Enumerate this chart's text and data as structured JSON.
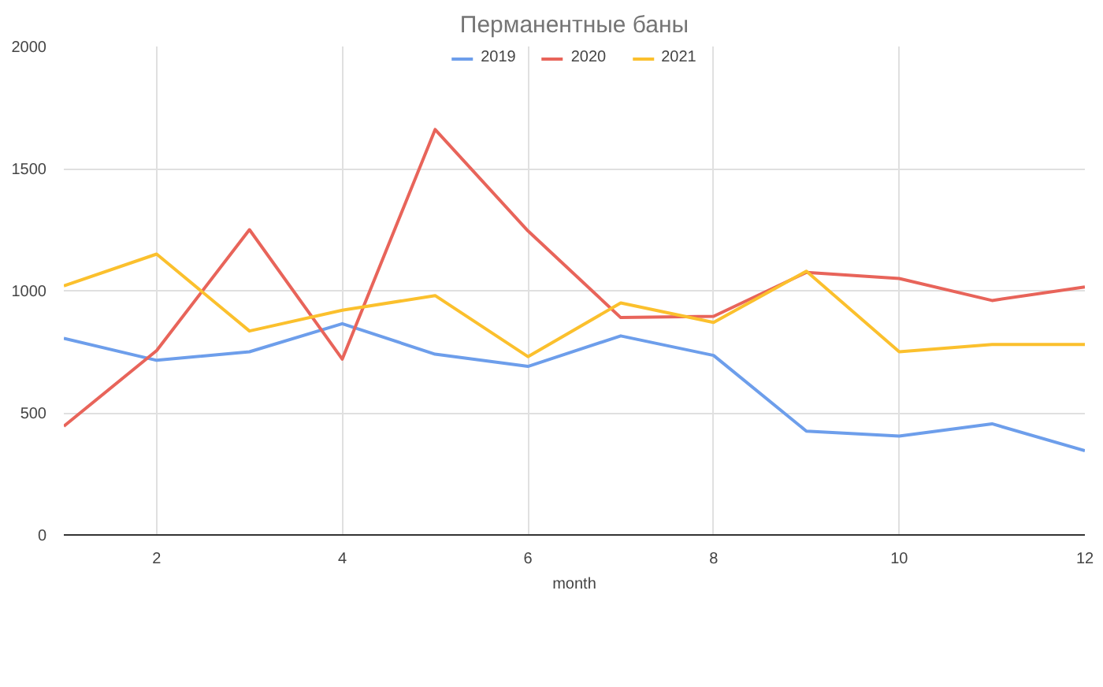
{
  "chart_data": {
    "type": "line",
    "title": "Перманентные баны",
    "xlabel": "month",
    "x": [
      1,
      2,
      3,
      4,
      5,
      6,
      7,
      8,
      9,
      10,
      11,
      12
    ],
    "xlim": [
      1,
      12
    ],
    "xticks": [
      2,
      4,
      6,
      8,
      10,
      12
    ],
    "ylim": [
      0,
      2000
    ],
    "yticks": [
      0,
      500,
      1000,
      1500,
      2000
    ],
    "grid": true,
    "legend": "top",
    "line_style": "solid",
    "series": [
      {
        "name": "2019",
        "color": "#6d9eeb",
        "values": [
          805,
          715,
          750,
          865,
          740,
          690,
          815,
          735,
          425,
          405,
          455,
          345
        ]
      },
      {
        "name": "2020",
        "color": "#e8645a",
        "values": [
          445,
          755,
          1250,
          720,
          1660,
          1245,
          890,
          895,
          1075,
          1050,
          960,
          1015
        ]
      },
      {
        "name": "2021",
        "color": "#fbc02d",
        "values": [
          1020,
          1150,
          835,
          920,
          980,
          730,
          950,
          870,
          1080,
          750,
          780,
          780
        ]
      }
    ]
  }
}
